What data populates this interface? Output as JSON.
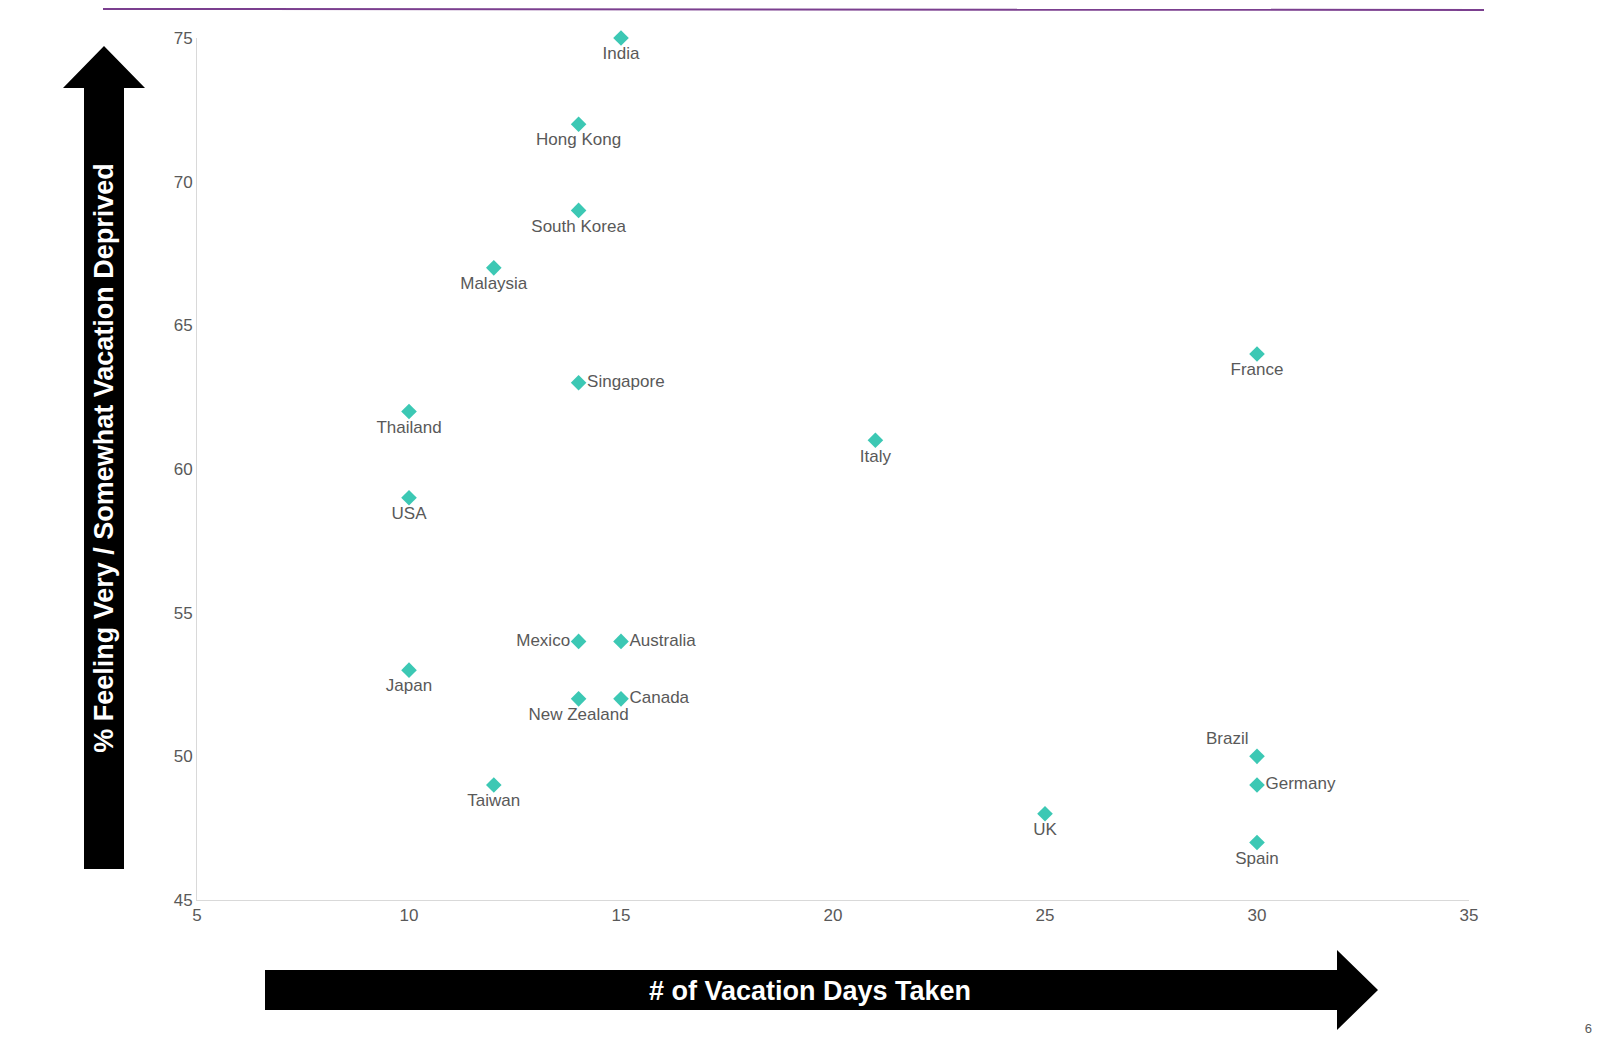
{
  "chart_data": {
    "type": "scatter",
    "x_label": "# of Vacation Days Taken",
    "y_label": "% Feeling Very / Somewhat Vacation Deprived",
    "annotations": [
      "6"
    ],
    "categories": [
      "India",
      "Hong Kong",
      "South Korea",
      "Malaysia",
      "Singapore",
      "Thailand",
      "USA",
      "Italy",
      "France",
      "Mexico",
      "Australia",
      "Japan",
      "New Zealand",
      "Canada",
      "Taiwan",
      "UK",
      "Brazil",
      "Germany",
      "Spain"
    ],
    "x": [
      15,
      14,
      14,
      12,
      14,
      10,
      10,
      21,
      30,
      14,
      15,
      10,
      14,
      15,
      12,
      25,
      30,
      30,
      30
    ],
    "values": [
      75,
      72,
      69,
      67,
      63,
      62,
      59,
      61,
      64,
      54,
      54,
      53,
      52,
      52,
      49,
      48,
      50,
      49,
      47
    ],
    "color": "#3cc8b4",
    "marker": "diamond",
    "xlim": [
      5,
      35
    ],
    "xticks": [
      5,
      10,
      15,
      20,
      25,
      30,
      35
    ],
    "ylim": [
      45,
      75
    ],
    "yticks": [
      45,
      50,
      55,
      60,
      65,
      70,
      75
    ],
    "grid": false,
    "data_labels": false
  }
}
